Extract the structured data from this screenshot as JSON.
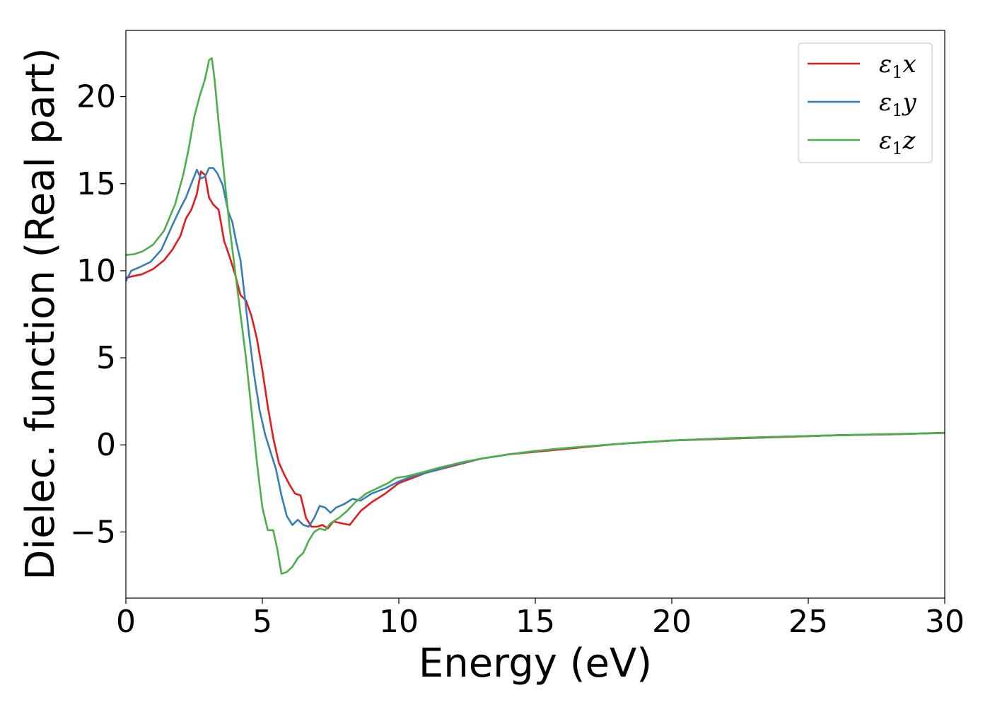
{
  "chart_data": {
    "type": "line",
    "title": "",
    "xlabel": "Energy (eV)",
    "ylabel": "Dielec. function (Real part)",
    "xlim": [
      0,
      30
    ],
    "ylim": [
      -8.8,
      23.8
    ],
    "xticks": [
      0,
      5,
      10,
      15,
      20,
      25,
      30
    ],
    "xtick_labels": [
      "0",
      "5",
      "10",
      "15",
      "20",
      "25",
      "30"
    ],
    "yticks": [
      -5,
      0,
      5,
      10,
      15,
      20
    ],
    "ytick_labels": [
      "−5",
      "0",
      "5",
      "10",
      "15",
      "20"
    ],
    "grid": false,
    "legend_position": "top-right",
    "series": [
      {
        "name_main": "ε",
        "name_sub": "1",
        "name_tail": "x",
        "color": "#e41a1c",
        "points": [
          [
            0,
            9.6
          ],
          [
            0.3,
            9.7
          ],
          [
            0.6,
            9.8
          ],
          [
            1.0,
            10.1
          ],
          [
            1.4,
            10.6
          ],
          [
            1.7,
            11.2
          ],
          [
            2.0,
            12.0
          ],
          [
            2.2,
            13.0
          ],
          [
            2.4,
            13.5
          ],
          [
            2.6,
            14.4
          ],
          [
            2.75,
            15.7
          ],
          [
            2.9,
            15.5
          ],
          [
            3.05,
            14.2
          ],
          [
            3.2,
            13.8
          ],
          [
            3.4,
            13.5
          ],
          [
            3.6,
            11.7
          ],
          [
            3.8,
            10.8
          ],
          [
            4.0,
            9.8
          ],
          [
            4.2,
            8.6
          ],
          [
            4.4,
            8.3
          ],
          [
            4.6,
            7.4
          ],
          [
            4.8,
            6.1
          ],
          [
            5.0,
            4.3
          ],
          [
            5.2,
            2.2
          ],
          [
            5.4,
            0.4
          ],
          [
            5.6,
            -1.0
          ],
          [
            5.8,
            -1.7
          ],
          [
            6.0,
            -2.3
          ],
          [
            6.2,
            -2.8
          ],
          [
            6.4,
            -2.9
          ],
          [
            6.6,
            -4.2
          ],
          [
            6.8,
            -4.7
          ],
          [
            7.0,
            -4.7
          ],
          [
            7.2,
            -4.6
          ],
          [
            7.4,
            -4.8
          ],
          [
            7.6,
            -4.4
          ],
          [
            7.9,
            -4.5
          ],
          [
            8.2,
            -4.6
          ],
          [
            8.6,
            -3.8
          ],
          [
            9.0,
            -3.3
          ],
          [
            9.5,
            -2.8
          ],
          [
            10.0,
            -2.2
          ],
          [
            10.5,
            -1.9
          ],
          [
            11.0,
            -1.6
          ],
          [
            12.0,
            -1.2
          ],
          [
            13.0,
            -0.8
          ],
          [
            14.0,
            -0.55
          ],
          [
            15.0,
            -0.4
          ],
          [
            16.0,
            -0.25
          ],
          [
            17.0,
            -0.1
          ],
          [
            18.0,
            0.05
          ],
          [
            20.0,
            0.25
          ],
          [
            22.0,
            0.35
          ],
          [
            24.0,
            0.45
          ],
          [
            26.0,
            0.55
          ],
          [
            28.0,
            0.6
          ],
          [
            30.0,
            0.7
          ]
        ]
      },
      {
        "name_main": "ε",
        "name_sub": "1",
        "name_tail": "y",
        "color": "#377eb8",
        "points": [
          [
            0,
            9.4
          ],
          [
            0.2,
            10.0
          ],
          [
            0.5,
            10.2
          ],
          [
            0.9,
            10.5
          ],
          [
            1.3,
            11.2
          ],
          [
            1.7,
            12.6
          ],
          [
            2.0,
            13.6
          ],
          [
            2.2,
            14.2
          ],
          [
            2.4,
            15.0
          ],
          [
            2.6,
            15.8
          ],
          [
            2.75,
            15.3
          ],
          [
            2.9,
            15.4
          ],
          [
            3.05,
            15.9
          ],
          [
            3.2,
            15.9
          ],
          [
            3.35,
            15.6
          ],
          [
            3.55,
            14.9
          ],
          [
            3.75,
            13.4
          ],
          [
            3.9,
            12.8
          ],
          [
            4.05,
            11.6
          ],
          [
            4.2,
            10.6
          ],
          [
            4.35,
            8.6
          ],
          [
            4.5,
            6.5
          ],
          [
            4.7,
            4.0
          ],
          [
            4.9,
            2.0
          ],
          [
            5.1,
            0.6
          ],
          [
            5.3,
            -0.4
          ],
          [
            5.5,
            -1.4
          ],
          [
            5.7,
            -2.9
          ],
          [
            5.9,
            -4.1
          ],
          [
            6.1,
            -4.6
          ],
          [
            6.3,
            -4.3
          ],
          [
            6.5,
            -4.6
          ],
          [
            6.7,
            -4.7
          ],
          [
            6.9,
            -4.2
          ],
          [
            7.1,
            -3.5
          ],
          [
            7.3,
            -3.6
          ],
          [
            7.5,
            -3.9
          ],
          [
            7.7,
            -3.6
          ],
          [
            8.0,
            -3.4
          ],
          [
            8.3,
            -3.1
          ],
          [
            8.6,
            -3.2
          ],
          [
            9.0,
            -2.8
          ],
          [
            9.5,
            -2.5
          ],
          [
            10.0,
            -2.1
          ],
          [
            10.5,
            -1.8
          ],
          [
            11.0,
            -1.6
          ],
          [
            12.0,
            -1.15
          ],
          [
            13.0,
            -0.8
          ],
          [
            14.0,
            -0.55
          ],
          [
            15.0,
            -0.35
          ],
          [
            16.0,
            -0.2
          ],
          [
            18.0,
            0.05
          ],
          [
            20.0,
            0.25
          ],
          [
            22.0,
            0.38
          ],
          [
            24.0,
            0.47
          ],
          [
            26.0,
            0.55
          ],
          [
            28.0,
            0.62
          ],
          [
            30.0,
            0.68
          ]
        ]
      },
      {
        "name_main": "ε",
        "name_sub": "1",
        "name_tail": "z",
        "color": "#4daf4a",
        "points": [
          [
            0,
            10.9
          ],
          [
            0.3,
            10.95
          ],
          [
            0.6,
            11.1
          ],
          [
            1.0,
            11.5
          ],
          [
            1.4,
            12.3
          ],
          [
            1.8,
            13.8
          ],
          [
            2.1,
            15.5
          ],
          [
            2.3,
            17.0
          ],
          [
            2.5,
            18.8
          ],
          [
            2.7,
            20.0
          ],
          [
            2.9,
            21.0
          ],
          [
            3.05,
            22.1
          ],
          [
            3.15,
            22.2
          ],
          [
            3.25,
            21.0
          ],
          [
            3.4,
            18.5
          ],
          [
            3.6,
            15.5
          ],
          [
            3.8,
            12.5
          ],
          [
            4.0,
            10.0
          ],
          [
            4.2,
            7.5
          ],
          [
            4.4,
            5.0
          ],
          [
            4.6,
            2.0
          ],
          [
            4.8,
            -1.0
          ],
          [
            5.0,
            -3.6
          ],
          [
            5.2,
            -4.9
          ],
          [
            5.4,
            -4.9
          ],
          [
            5.55,
            -6.0
          ],
          [
            5.7,
            -7.4
          ],
          [
            5.9,
            -7.3
          ],
          [
            6.1,
            -7.0
          ],
          [
            6.3,
            -6.5
          ],
          [
            6.5,
            -6.2
          ],
          [
            6.7,
            -5.5
          ],
          [
            6.9,
            -5.0
          ],
          [
            7.1,
            -4.8
          ],
          [
            7.3,
            -4.9
          ],
          [
            7.5,
            -4.5
          ],
          [
            7.8,
            -4.2
          ],
          [
            8.1,
            -3.8
          ],
          [
            8.4,
            -3.3
          ],
          [
            8.8,
            -2.8
          ],
          [
            9.2,
            -2.5
          ],
          [
            9.6,
            -2.2
          ],
          [
            9.9,
            -1.9
          ],
          [
            10.3,
            -1.8
          ],
          [
            10.8,
            -1.6
          ],
          [
            11.5,
            -1.3
          ],
          [
            12.3,
            -1.0
          ],
          [
            13.0,
            -0.8
          ],
          [
            14.0,
            -0.55
          ],
          [
            15.0,
            -0.35
          ],
          [
            16.0,
            -0.2
          ],
          [
            18.0,
            0.05
          ],
          [
            20.0,
            0.25
          ],
          [
            22.0,
            0.38
          ],
          [
            24.0,
            0.47
          ],
          [
            26.0,
            0.55
          ],
          [
            28.0,
            0.62
          ],
          [
            30.0,
            0.68
          ]
        ]
      }
    ]
  }
}
